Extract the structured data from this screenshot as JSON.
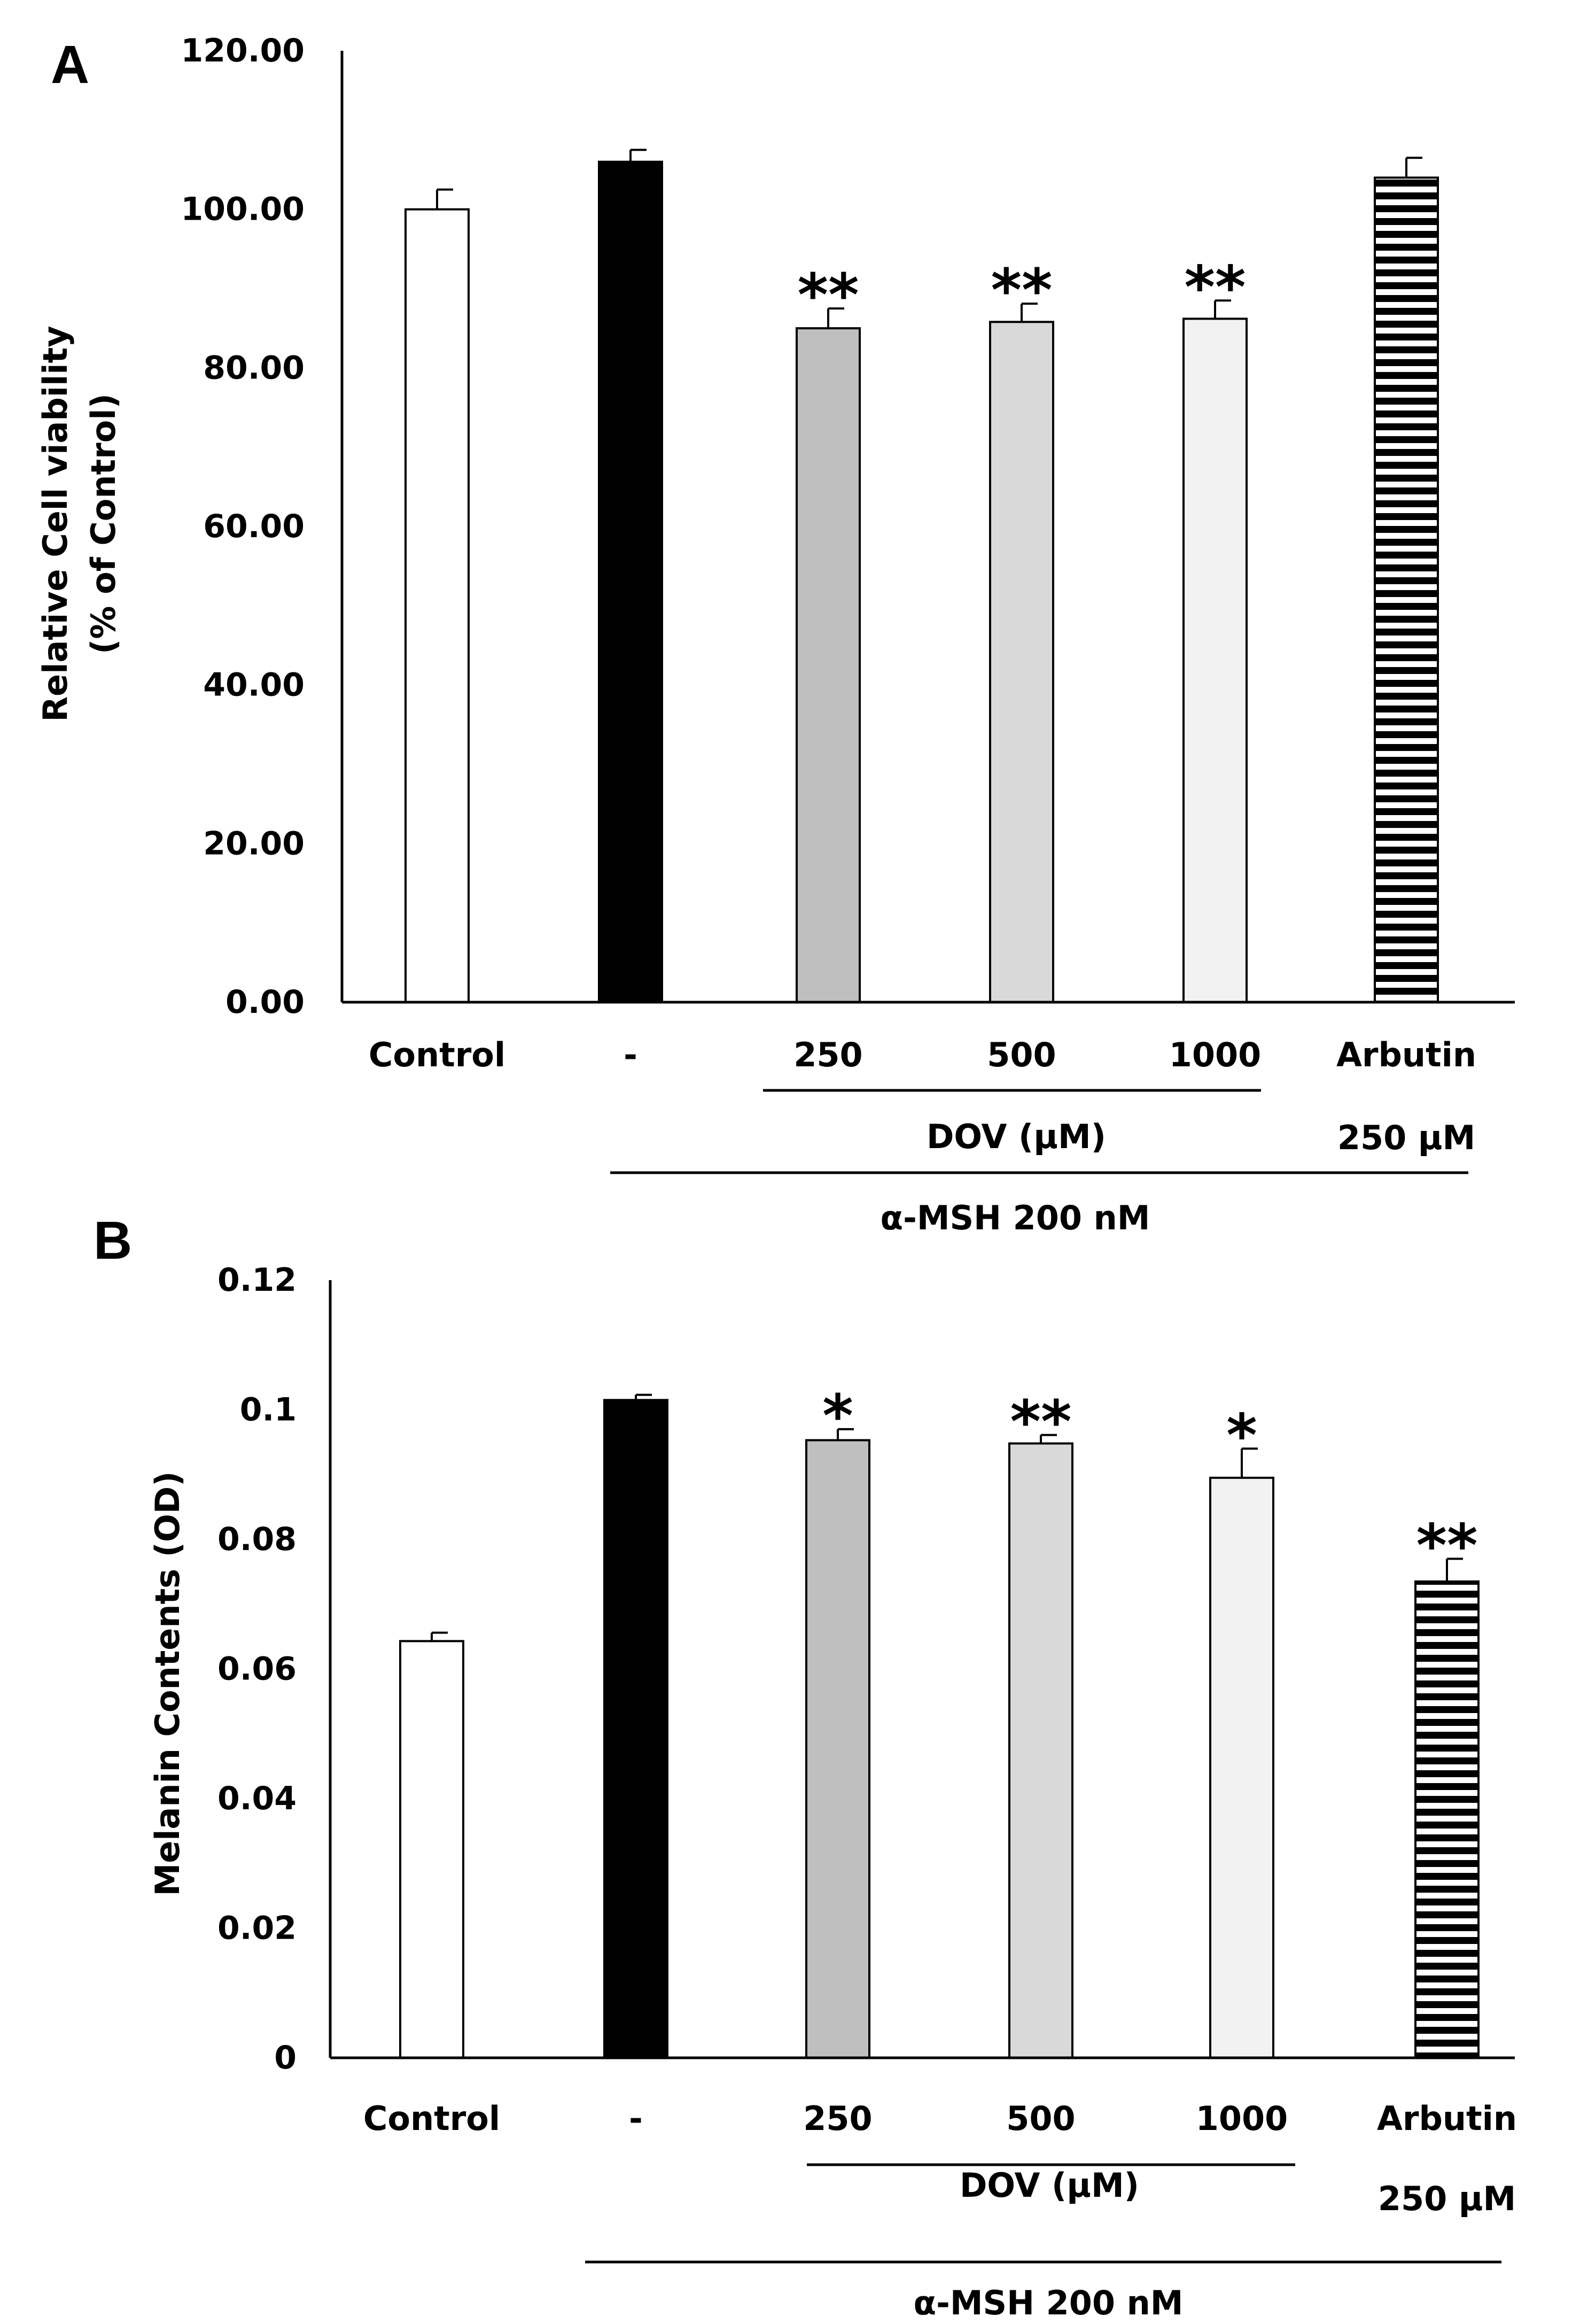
{
  "chart_data": [
    {
      "panel": "A",
      "type": "bar",
      "ylabel": [
        "Relative Cell viability",
        "(% of Control)"
      ],
      "ylim": [
        0,
        120
      ],
      "yticks": [
        "0.00",
        "20.00",
        "40.00",
        "60.00",
        "80.00",
        "100.00",
        "120.00"
      ],
      "categories": [
        "Control",
        "-",
        "250",
        "500",
        "1000",
        "Arbutin"
      ],
      "category_sublabels": [
        "",
        "",
        "",
        "",
        "",
        "250 μM"
      ],
      "values": [
        100.0,
        106.0,
        85.0,
        85.8,
        86.2,
        104.0
      ],
      "errors": [
        2.5,
        1.5,
        2.5,
        2.3,
        2.3,
        2.5
      ],
      "significance": [
        "",
        "",
        "**",
        "**",
        "**",
        ""
      ],
      "fills": [
        "#ffffff",
        "#000000",
        "#bfbfbf",
        "#d9d9d9",
        "#f2f2f2",
        "stripes"
      ],
      "group_labels": {
        "dov": "DOV (μM)",
        "msh": "α-MSH 200 nM"
      }
    },
    {
      "panel": "B",
      "type": "bar",
      "ylabel": [
        "Melanin Contents (OD)"
      ],
      "ylim": [
        0,
        0.12
      ],
      "yticks": [
        "0",
        "0.02",
        "0.04",
        "0.06",
        "0.08",
        "0.1",
        "0.12"
      ],
      "categories": [
        "Control",
        "-",
        "250",
        "500",
        "1000",
        "Arbutin"
      ],
      "category_sublabels": [
        "",
        "",
        "",
        "",
        "",
        "250 μM"
      ],
      "values": [
        0.0643,
        0.1015,
        0.0953,
        0.0948,
        0.0895,
        0.0735
      ],
      "errors": [
        0.0013,
        0.0008,
        0.0017,
        0.0013,
        0.0045,
        0.0035
      ],
      "significance": [
        "",
        "",
        "*",
        "**",
        "*",
        "**"
      ],
      "fills": [
        "#ffffff",
        "#000000",
        "#bfbfbf",
        "#d9d9d9",
        "#f2f2f2",
        "stripes"
      ],
      "group_labels": {
        "dov": "DOV (μM)",
        "msh": "α-MSH 200 nM"
      }
    }
  ]
}
